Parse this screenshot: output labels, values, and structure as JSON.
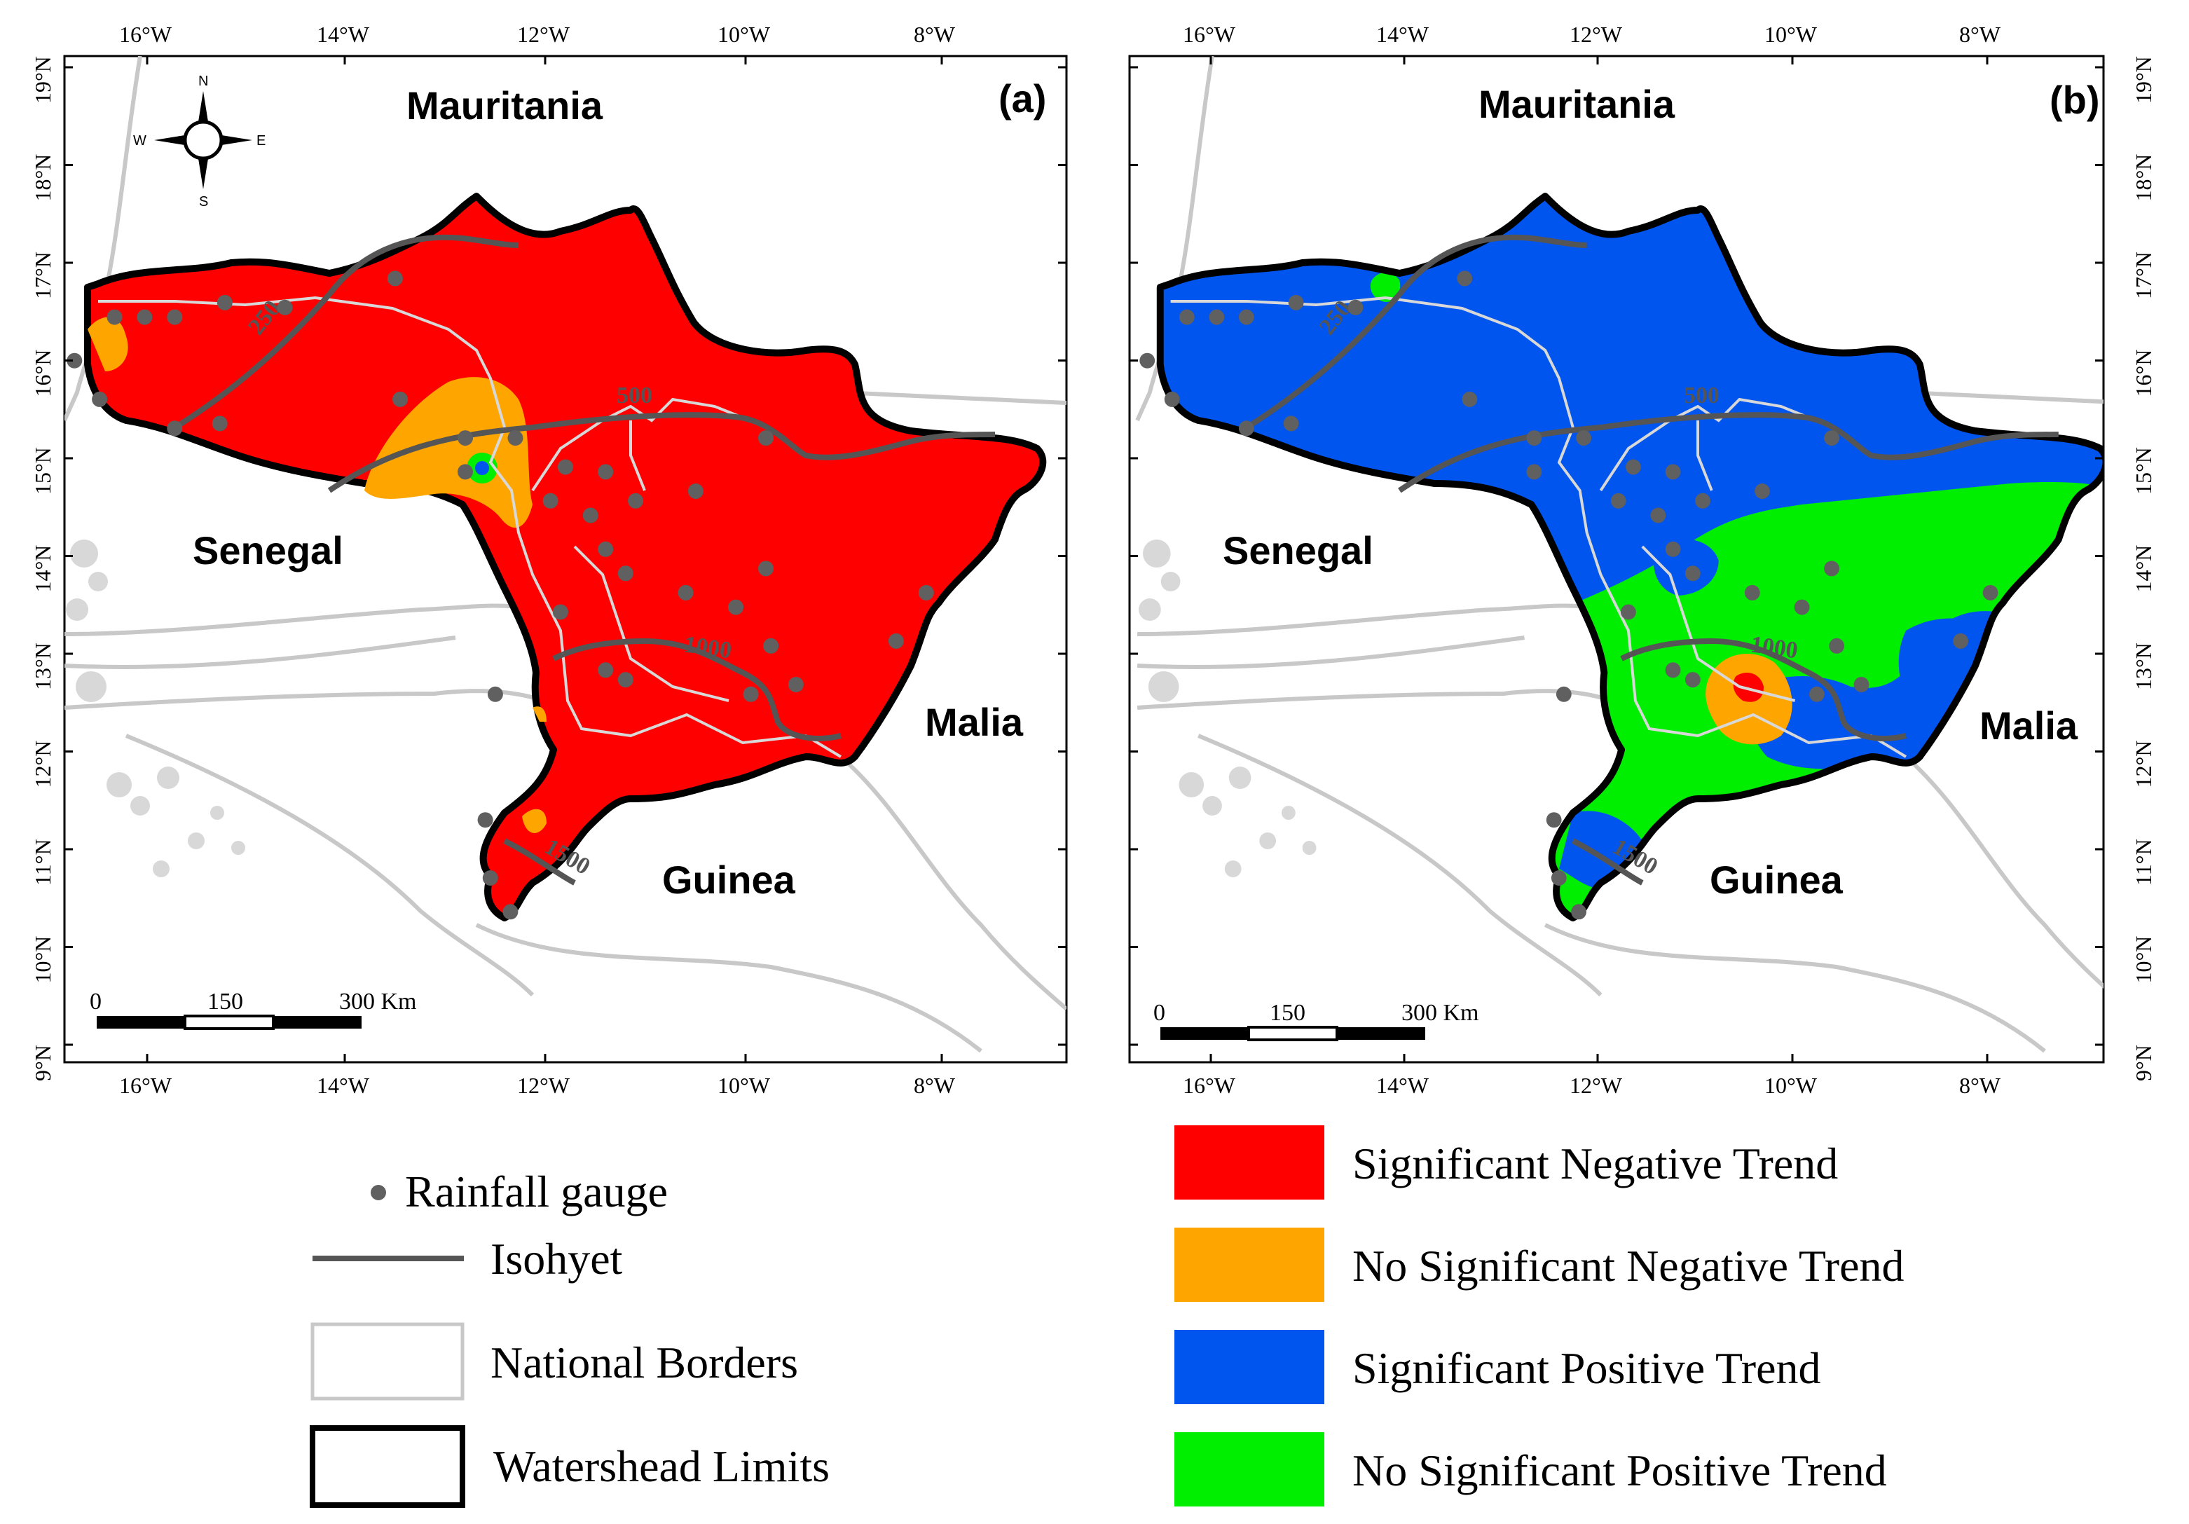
{
  "panels": [
    {
      "id": "a",
      "label": "(a)",
      "countries": [
        "Mauritania",
        "Senegal",
        "Malia",
        "Guinea"
      ],
      "isohyets": [
        "250",
        "500",
        "1000",
        "1500"
      ],
      "scale": {
        "ticks": [
          "0",
          "150",
          "300 Km"
        ]
      }
    },
    {
      "id": "b",
      "label": "(b)",
      "countries": [
        "Mauritania",
        "Senegal",
        "Malia",
        "Guinea"
      ],
      "isohyets": [
        "250",
        "500",
        "1000",
        "1500"
      ],
      "scale": {
        "ticks": [
          "0",
          "150",
          "300 Km"
        ]
      }
    }
  ],
  "axes": {
    "lon_ticks": [
      "16°W",
      "14°W",
      "12°W",
      "10°W",
      "8°W"
    ],
    "lat_ticks": [
      "19°N",
      "18°N",
      "17°N",
      "16°N",
      "15°N",
      "14°N",
      "13°N",
      "12°N",
      "11°N",
      "10°N",
      "9°N"
    ]
  },
  "compass": {
    "n": "N",
    "s": "S",
    "e": "E",
    "w": "W"
  },
  "legend_left": [
    {
      "symbol": "gauge",
      "label": "Rainfall gauge"
    },
    {
      "symbol": "isohyet",
      "label": "Isohyet"
    },
    {
      "symbol": "border",
      "label": "National Borders"
    },
    {
      "symbol": "watershed",
      "label": "Watershead Limits"
    }
  ],
  "legend_right": [
    {
      "label": "Significant Negative Trend",
      "color": "#ff0000"
    },
    {
      "label": "No Significant Negative Trend",
      "color": "#ffa500"
    },
    {
      "label": "Significant Positive Trend",
      "color": "#0055ee"
    },
    {
      "label": "No Significant Positive Trend",
      "color": "#00ee00"
    }
  ],
  "colors": {
    "frame": "#000000",
    "border_line": "#c8c8c8",
    "isohyet": "#555555",
    "gauge": "#606060",
    "river": "#d0d0d0"
  },
  "gauges_lonlat": [
    [
      -16.5,
      16.05
    ],
    [
      -16.25,
      15.65
    ],
    [
      -16.1,
      16.5
    ],
    [
      -15.8,
      16.5
    ],
    [
      -15.5,
      16.5
    ],
    [
      -15.0,
      16.65
    ],
    [
      -14.4,
      16.6
    ],
    [
      -13.3,
      16.9
    ],
    [
      -13.25,
      15.65
    ],
    [
      -15.5,
      15.35
    ],
    [
      -15.05,
      15.4
    ],
    [
      -12.6,
      15.25
    ],
    [
      -12.6,
      14.9
    ],
    [
      -12.1,
      15.25
    ],
    [
      -11.6,
      14.95
    ],
    [
      -11.2,
      14.9
    ],
    [
      -11.75,
      14.6
    ],
    [
      -11.35,
      14.45
    ],
    [
      -10.9,
      14.6
    ],
    [
      -10.3,
      14.7
    ],
    [
      -9.6,
      15.25
    ],
    [
      -11.2,
      14.1
    ],
    [
      -11.0,
      13.85
    ],
    [
      -10.4,
      13.65
    ],
    [
      -9.9,
      13.5
    ],
    [
      -9.6,
      13.9
    ],
    [
      -9.55,
      13.1
    ],
    [
      -11.65,
      13.45
    ],
    [
      -11.2,
      12.85
    ],
    [
      -11.0,
      12.75
    ],
    [
      -9.75,
      12.6
    ],
    [
      -9.3,
      12.7
    ],
    [
      -8.3,
      13.15
    ],
    [
      -8.0,
      13.65
    ],
    [
      -12.3,
      12.6
    ],
    [
      -12.4,
      11.3
    ],
    [
      -12.35,
      10.7
    ],
    [
      -12.15,
      10.35
    ]
  ]
}
